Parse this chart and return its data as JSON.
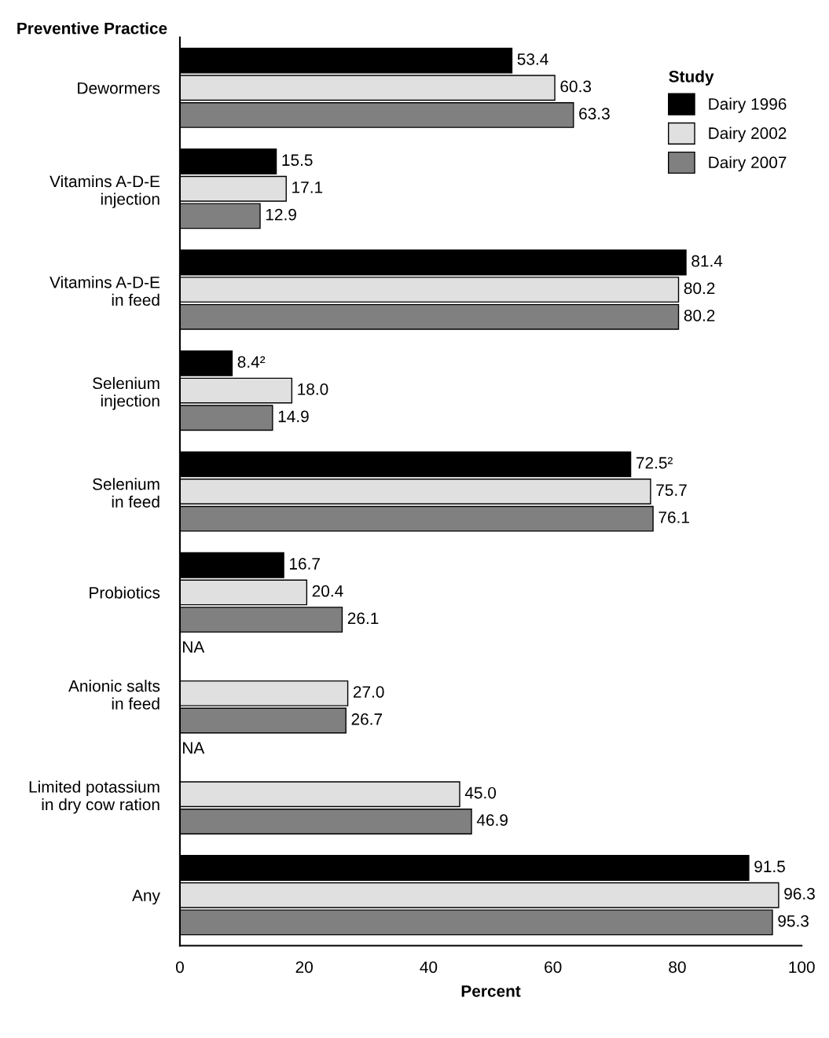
{
  "chart_data": {
    "type": "bar",
    "orientation": "horizontal",
    "ylabel": "Preventive Practice",
    "xlabel": "Percent",
    "legend_title": "Study",
    "legend": "top right",
    "categories": [
      "Dewormers",
      "Vitamins A-D-E\ninjection",
      "Vitamins A-D-E\nin feed",
      "Selenium\ninjection",
      "Selenium\nin feed",
      "Probiotics",
      "Anionic salts\nin feed",
      "Limited potassium\nin dry cow ration",
      "Any"
    ],
    "series": [
      {
        "name": "Dairy 1996",
        "color": "#000000",
        "values": [
          53.4,
          15.5,
          81.4,
          8.4,
          72.5,
          16.7,
          null,
          null,
          91.5
        ],
        "value_labels": [
          "53.4",
          "15.5",
          "81.4",
          "8.4²",
          "72.5²",
          "16.7",
          "NA",
          "NA",
          "91.5"
        ]
      },
      {
        "name": "Dairy 2002",
        "color": "#e0e0e0",
        "values": [
          60.3,
          17.1,
          80.2,
          18.0,
          75.7,
          20.4,
          27.0,
          45.0,
          96.3
        ],
        "value_labels": [
          "60.3",
          "17.1",
          "80.2",
          "18.0",
          "75.7",
          "20.4",
          "27.0",
          "45.0",
          "96.3"
        ]
      },
      {
        "name": "Dairy 2007",
        "color": "#808080",
        "values": [
          63.3,
          12.9,
          80.2,
          14.9,
          76.1,
          26.1,
          26.7,
          46.9,
          95.3
        ],
        "value_labels": [
          "63.3",
          "12.9",
          "80.2",
          "14.9",
          "76.1",
          "26.1",
          "26.7",
          "46.9",
          "95.3"
        ]
      }
    ],
    "xlim": [
      0,
      100
    ],
    "xticks": [
      0,
      20,
      40,
      60,
      80,
      100
    ],
    "grid": false
  }
}
